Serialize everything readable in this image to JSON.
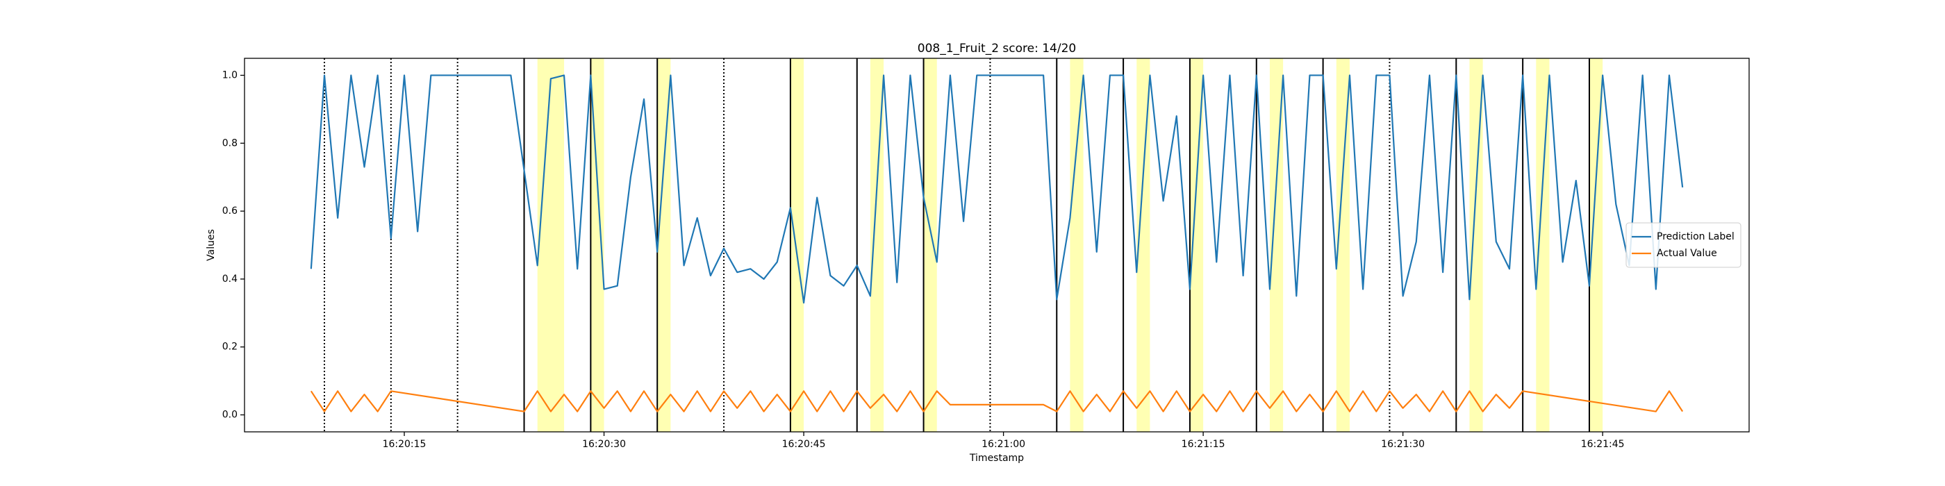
{
  "chart_data": {
    "type": "line",
    "title": "008_1_Fruit_2 score: 14/20",
    "xlabel": "Timestamp",
    "ylabel": "Values",
    "xlim": [
      "16:20:03",
      "16:21:56"
    ],
    "xticks": [
      "16:20:15",
      "16:20:30",
      "16:20:45",
      "16:21:00",
      "16:21:15",
      "16:21:30",
      "16:21:45"
    ],
    "ylim": [
      -0.05,
      1.05
    ],
    "yticks": [
      {
        "value": 0,
        "label": "0.0"
      },
      0.2,
      0.4,
      0.6,
      0.8,
      {
        "value": 1,
        "label": "1.0"
      }
    ],
    "grid": false,
    "legend": "center right",
    "series": [
      {
        "name": "Prediction Label",
        "color": "#1f77b4",
        "x": [
          "16:20:08",
          "16:20:09",
          "16:20:10",
          "16:20:11",
          "16:20:12",
          "16:20:13",
          "16:20:14",
          "16:20:15",
          "16:20:16",
          "16:20:17",
          "16:20:18",
          "16:20:19",
          "16:20:20",
          "16:20:21",
          "16:20:22",
          "16:20:23",
          "16:20:24",
          "16:20:25",
          "16:20:26",
          "16:20:27",
          "16:20:28",
          "16:20:29",
          "16:20:30",
          "16:20:31",
          "16:20:32",
          "16:20:33",
          "16:20:34",
          "16:20:35",
          "16:20:36",
          "16:20:37",
          "16:20:38",
          "16:20:39",
          "16:20:40",
          "16:20:41",
          "16:20:42",
          "16:20:43",
          "16:20:44",
          "16:20:45",
          "16:20:46",
          "16:20:47",
          "16:20:48",
          "16:20:49",
          "16:20:50",
          "16:20:51",
          "16:20:52",
          "16:20:53",
          "16:20:54",
          "16:20:55",
          "16:20:56",
          "16:20:57",
          "16:20:58",
          "16:20:59",
          "16:21:00",
          "16:21:01",
          "16:21:02",
          "16:21:03",
          "16:21:04",
          "16:21:05",
          "16:21:06",
          "16:21:07",
          "16:21:08",
          "16:21:09",
          "16:21:10",
          "16:21:11",
          "16:21:12",
          "16:21:13",
          "16:21:14",
          "16:21:15",
          "16:21:16",
          "16:21:17",
          "16:21:18",
          "16:21:19",
          "16:21:20",
          "16:21:21",
          "16:21:22",
          "16:21:23",
          "16:21:24",
          "16:21:25",
          "16:21:26",
          "16:21:27",
          "16:21:28",
          "16:21:29",
          "16:21:30",
          "16:21:31",
          "16:21:32",
          "16:21:33",
          "16:21:34",
          "16:21:35",
          "16:21:36",
          "16:21:37",
          "16:21:38",
          "16:21:39",
          "16:21:40",
          "16:21:41",
          "16:21:42",
          "16:21:43",
          "16:21:44",
          "16:21:45",
          "16:21:46",
          "16:21:47",
          "16:21:48",
          "16:21:49",
          "16:21:50",
          "16:21:51"
        ],
        "values": [
          0.43,
          1.0,
          0.58,
          1.0,
          0.73,
          1.0,
          0.52,
          1.0,
          0.54,
          1.0,
          1.0,
          1.0,
          1.0,
          1.0,
          1.0,
          1.0,
          0.72,
          0.44,
          0.99,
          1.0,
          0.43,
          1.0,
          0.37,
          0.38,
          0.7,
          0.93,
          0.48,
          1.0,
          0.44,
          0.58,
          0.41,
          0.49,
          0.42,
          0.43,
          0.4,
          0.45,
          0.61,
          0.33,
          0.64,
          0.41,
          0.38,
          0.44,
          0.35,
          1.0,
          0.39,
          1.0,
          0.64,
          0.45,
          1.0,
          0.57,
          1.0,
          1.0,
          1.0,
          1.0,
          1.0,
          1.0,
          0.34,
          0.58,
          1.0,
          0.48,
          1.0,
          1.0,
          0.42,
          1.0,
          0.63,
          0.88,
          0.37,
          1.0,
          0.45,
          1.0,
          0.41,
          1.0,
          0.37,
          1.0,
          0.35,
          1.0,
          1.0,
          0.43,
          1.0,
          0.37,
          1.0,
          1.0,
          0.35,
          0.51,
          1.0,
          0.42,
          1.0,
          0.34,
          1.0,
          0.51,
          0.43,
          1.0,
          0.37,
          1.0,
          0.45,
          0.69,
          0.38,
          1.0,
          0.62,
          0.44,
          1.0,
          0.37,
          1.0,
          0.67
        ]
      },
      {
        "name": "Actual Value",
        "color": "#ff7f0e",
        "x": [
          "16:20:08",
          "16:20:09",
          "16:20:10",
          "16:20:11",
          "16:20:12",
          "16:20:13",
          "16:20:14",
          "16:20:24",
          "16:20:25",
          "16:20:26",
          "16:20:27",
          "16:20:28",
          "16:20:29",
          "16:20:30",
          "16:20:31",
          "16:20:32",
          "16:20:33",
          "16:20:34",
          "16:20:35",
          "16:20:36",
          "16:20:37",
          "16:20:38",
          "16:20:39",
          "16:20:40",
          "16:20:41",
          "16:20:42",
          "16:20:43",
          "16:20:44",
          "16:20:45",
          "16:20:46",
          "16:20:47",
          "16:20:48",
          "16:20:49",
          "16:20:50",
          "16:20:51",
          "16:20:52",
          "16:20:53",
          "16:20:54",
          "16:20:55",
          "16:20:56",
          "16:21:03",
          "16:21:04",
          "16:21:05",
          "16:21:06",
          "16:21:07",
          "16:21:08",
          "16:21:09",
          "16:21:10",
          "16:21:11",
          "16:21:12",
          "16:21:13",
          "16:21:14",
          "16:21:15",
          "16:21:16",
          "16:21:17",
          "16:21:18",
          "16:21:19",
          "16:21:20",
          "16:21:21",
          "16:21:22",
          "16:21:23",
          "16:21:24",
          "16:21:25",
          "16:21:26",
          "16:21:27",
          "16:21:28",
          "16:21:29",
          "16:21:30",
          "16:21:31",
          "16:21:32",
          "16:21:33",
          "16:21:34",
          "16:21:35",
          "16:21:36",
          "16:21:37",
          "16:21:38",
          "16:21:39",
          "16:21:49",
          "16:21:50",
          "16:21:51"
        ],
        "values": [
          0.07,
          0.01,
          0.07,
          0.01,
          0.06,
          0.01,
          0.07,
          0.01,
          0.07,
          0.01,
          0.06,
          0.01,
          0.07,
          0.02,
          0.07,
          0.01,
          0.07,
          0.01,
          0.06,
          0.01,
          0.07,
          0.01,
          0.07,
          0.02,
          0.07,
          0.01,
          0.06,
          0.01,
          0.07,
          0.01,
          0.07,
          0.01,
          0.07,
          0.02,
          0.06,
          0.01,
          0.07,
          0.01,
          0.07,
          0.03,
          0.03,
          0.01,
          0.07,
          0.01,
          0.06,
          0.01,
          0.07,
          0.02,
          0.07,
          0.01,
          0.07,
          0.01,
          0.06,
          0.01,
          0.07,
          0.01,
          0.07,
          0.02,
          0.07,
          0.01,
          0.06,
          0.01,
          0.07,
          0.01,
          0.07,
          0.01,
          0.07,
          0.02,
          0.06,
          0.01,
          0.07,
          0.01,
          0.07,
          0.01,
          0.06,
          0.02,
          0.07,
          0.01,
          0.07,
          0.01
        ]
      }
    ],
    "vertical_lines": [
      "16:20:24",
      "16:20:29",
      "16:20:34",
      "16:20:44",
      "16:20:49",
      "16:20:54",
      "16:21:04",
      "16:21:09",
      "16:21:14",
      "16:21:19",
      "16:21:24",
      "16:21:34",
      "16:21:39",
      "16:21:44"
    ],
    "dotted_lines": [
      "16:20:09",
      "16:20:14",
      "16:20:19",
      "16:20:39",
      "16:20:59",
      "16:21:29"
    ],
    "highlight_spans": [
      [
        "16:20:25",
        "16:20:27"
      ],
      [
        "16:20:29",
        "16:20:30"
      ],
      [
        "16:20:34",
        "16:20:35"
      ],
      [
        "16:20:44",
        "16:20:45"
      ],
      [
        "16:20:50",
        "16:20:51"
      ],
      [
        "16:20:54",
        "16:20:55"
      ],
      [
        "16:21:05",
        "16:21:06"
      ],
      [
        "16:21:10",
        "16:21:11"
      ],
      [
        "16:21:14",
        "16:21:15"
      ],
      [
        "16:21:20",
        "16:21:21"
      ],
      [
        "16:21:25",
        "16:21:26"
      ],
      [
        "16:21:35",
        "16:21:36"
      ],
      [
        "16:21:40",
        "16:21:41"
      ],
      [
        "16:21:44",
        "16:21:45"
      ]
    ]
  }
}
